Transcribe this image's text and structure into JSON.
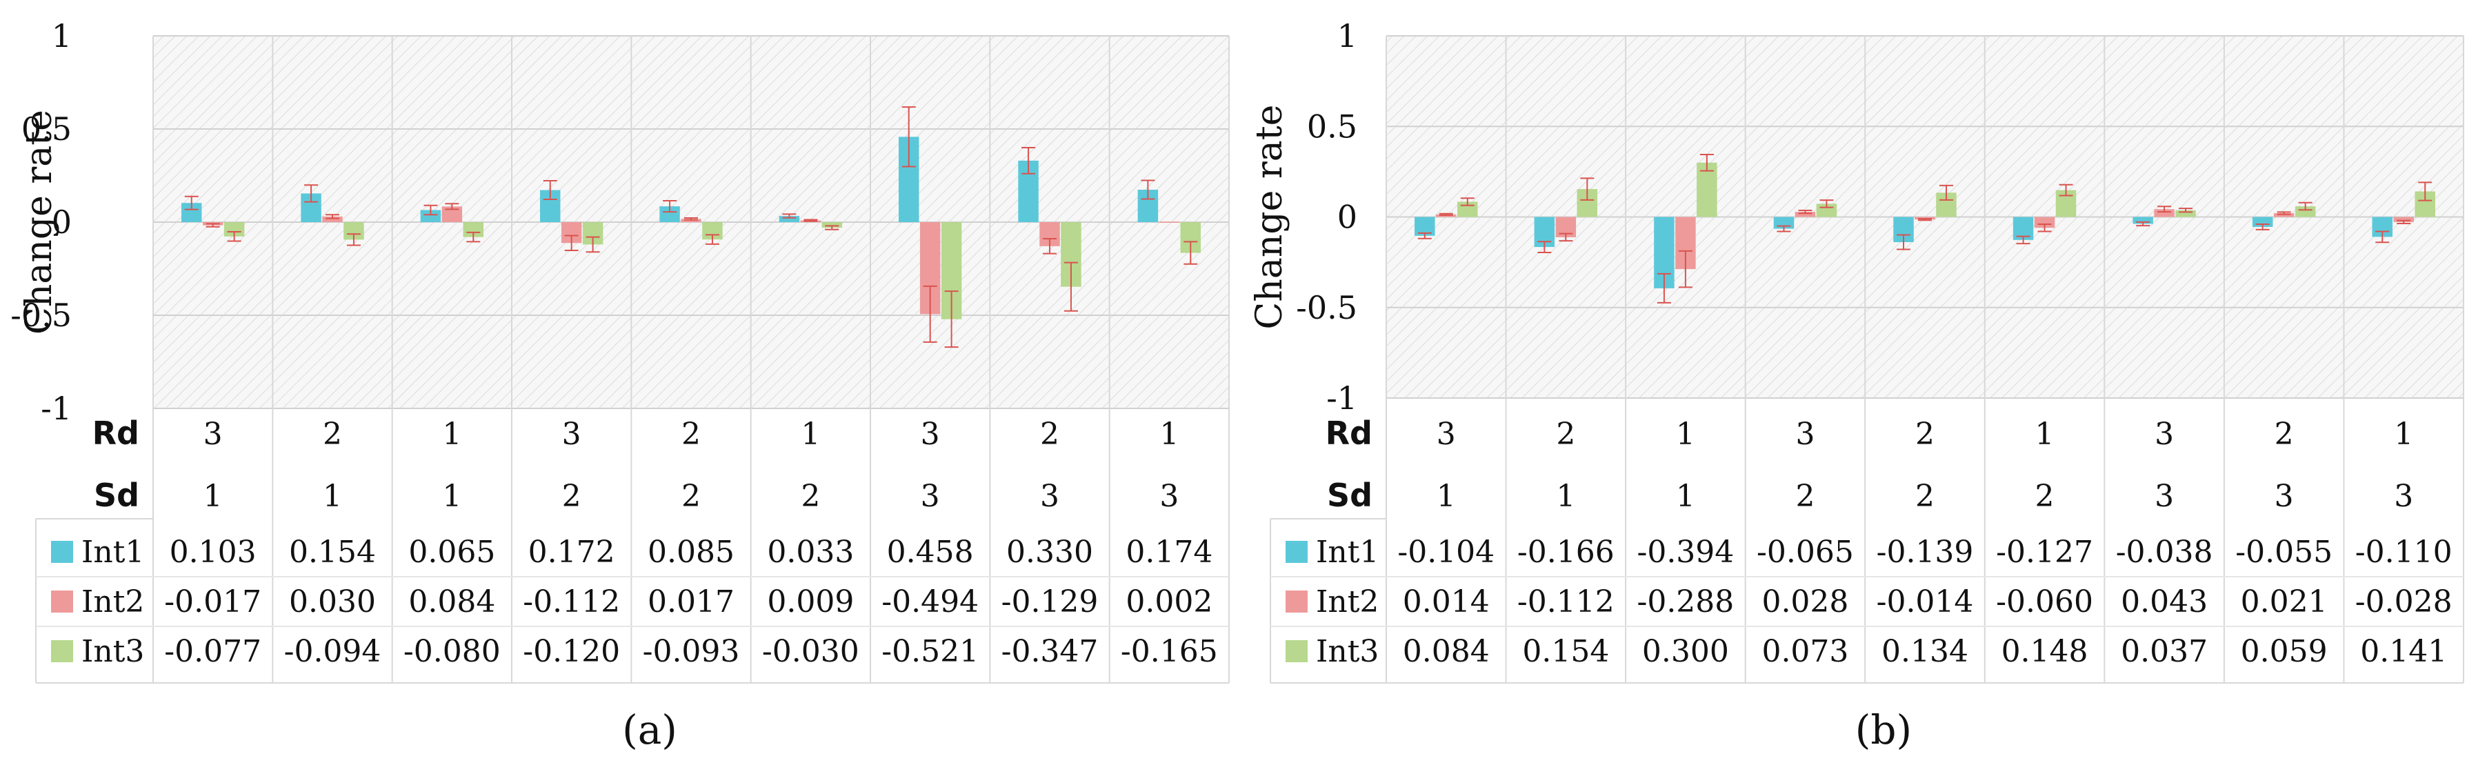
{
  "chart_data": [
    {
      "type": "bar",
      "caption": "(a)",
      "ylabel": "Change rate",
      "ylim": [
        -1,
        1
      ],
      "yticks": [
        "1",
        "0.5",
        "0",
        "-0.5",
        "-1"
      ],
      "row_labels": [
        "Rd",
        "Sd"
      ],
      "rd": [
        "3",
        "2",
        "1",
        "3",
        "2",
        "1",
        "3",
        "2",
        "1"
      ],
      "sd": [
        "1",
        "1",
        "1",
        "2",
        "2",
        "2",
        "3",
        "3",
        "3"
      ],
      "series": [
        {
          "name": "Int1",
          "color": "#5BC8DA",
          "values": [
            0.103,
            0.154,
            0.065,
            0.172,
            0.085,
            0.033,
            0.458,
            0.33,
            0.174
          ],
          "labels": [
            "0.103",
            "0.154",
            "0.065",
            "0.172",
            "0.085",
            "0.033",
            "0.458",
            "0.330",
            "0.174"
          ],
          "errors": [
            0.035,
            0.045,
            0.025,
            0.05,
            0.03,
            0.01,
            0.16,
            0.07,
            0.05
          ]
        },
        {
          "name": "Int2",
          "color": "#EE9A9A",
          "values": [
            -0.017,
            0.03,
            0.084,
            -0.112,
            0.017,
            0.009,
            -0.494,
            -0.129,
            0.002
          ],
          "labels": [
            "-0.017",
            "0.030",
            "0.084",
            "-0.112",
            "0.017",
            "0.009",
            "-0.494",
            "-0.129",
            "0.002"
          ],
          "errors": [
            0.008,
            0.01,
            0.015,
            0.04,
            0.005,
            0.004,
            0.15,
            0.04,
            0.0
          ]
        },
        {
          "name": "Int3",
          "color": "#B7D88E",
          "values": [
            -0.077,
            -0.094,
            -0.08,
            -0.12,
            -0.093,
            -0.03,
            -0.521,
            -0.347,
            -0.165
          ],
          "labels": [
            "-0.077",
            "-0.094",
            "-0.080",
            "-0.120",
            "-0.093",
            "-0.030",
            "-0.521",
            "-0.347",
            "-0.165"
          ],
          "errors": [
            0.025,
            0.03,
            0.025,
            0.04,
            0.025,
            0.01,
            0.15,
            0.13,
            0.06
          ]
        }
      ]
    },
    {
      "type": "bar",
      "caption": "(b)",
      "ylabel": "Change rate",
      "ylim": [
        -1,
        1
      ],
      "yticks": [
        "1",
        "0.5",
        "0",
        "-0.5",
        "-1"
      ],
      "row_labels": [
        "Rd",
        "Sd"
      ],
      "rd": [
        "3",
        "2",
        "1",
        "3",
        "2",
        "1",
        "3",
        "2",
        "1"
      ],
      "sd": [
        "1",
        "1",
        "1",
        "2",
        "2",
        "2",
        "3",
        "3",
        "3"
      ],
      "series": [
        {
          "name": "Int1",
          "color": "#5BC8DA",
          "values": [
            -0.104,
            -0.166,
            -0.394,
            -0.065,
            -0.139,
            -0.127,
            -0.038,
            -0.055,
            -0.11
          ],
          "labels": [
            "-0.104",
            "-0.166",
            "-0.394",
            "-0.065",
            "-0.139",
            "-0.127",
            "-0.038",
            "-0.055",
            "-0.110"
          ],
          "errors": [
            0.015,
            0.03,
            0.08,
            0.015,
            0.04,
            0.02,
            0.01,
            0.015,
            0.03
          ]
        },
        {
          "name": "Int2",
          "color": "#EE9A9A",
          "values": [
            0.014,
            -0.112,
            -0.288,
            0.028,
            -0.014,
            -0.06,
            0.043,
            0.021,
            -0.028
          ],
          "labels": [
            "0.014",
            "-0.112",
            "-0.288",
            "0.028",
            "-0.014",
            "-0.060",
            "0.043",
            "0.021",
            "-0.028"
          ],
          "errors": [
            0.004,
            0.02,
            0.1,
            0.008,
            0.004,
            0.02,
            0.015,
            0.006,
            0.008
          ]
        },
        {
          "name": "Int3",
          "color": "#B7D88E",
          "values": [
            0.084,
            0.154,
            0.3,
            0.073,
            0.134,
            0.148,
            0.037,
            0.059,
            0.141
          ],
          "labels": [
            "0.084",
            "0.154",
            "0.300",
            "0.073",
            "0.134",
            "0.148",
            "0.037",
            "0.059",
            "0.141"
          ],
          "errors": [
            0.02,
            0.06,
            0.045,
            0.02,
            0.04,
            0.03,
            0.01,
            0.02,
            0.05
          ]
        }
      ]
    }
  ]
}
